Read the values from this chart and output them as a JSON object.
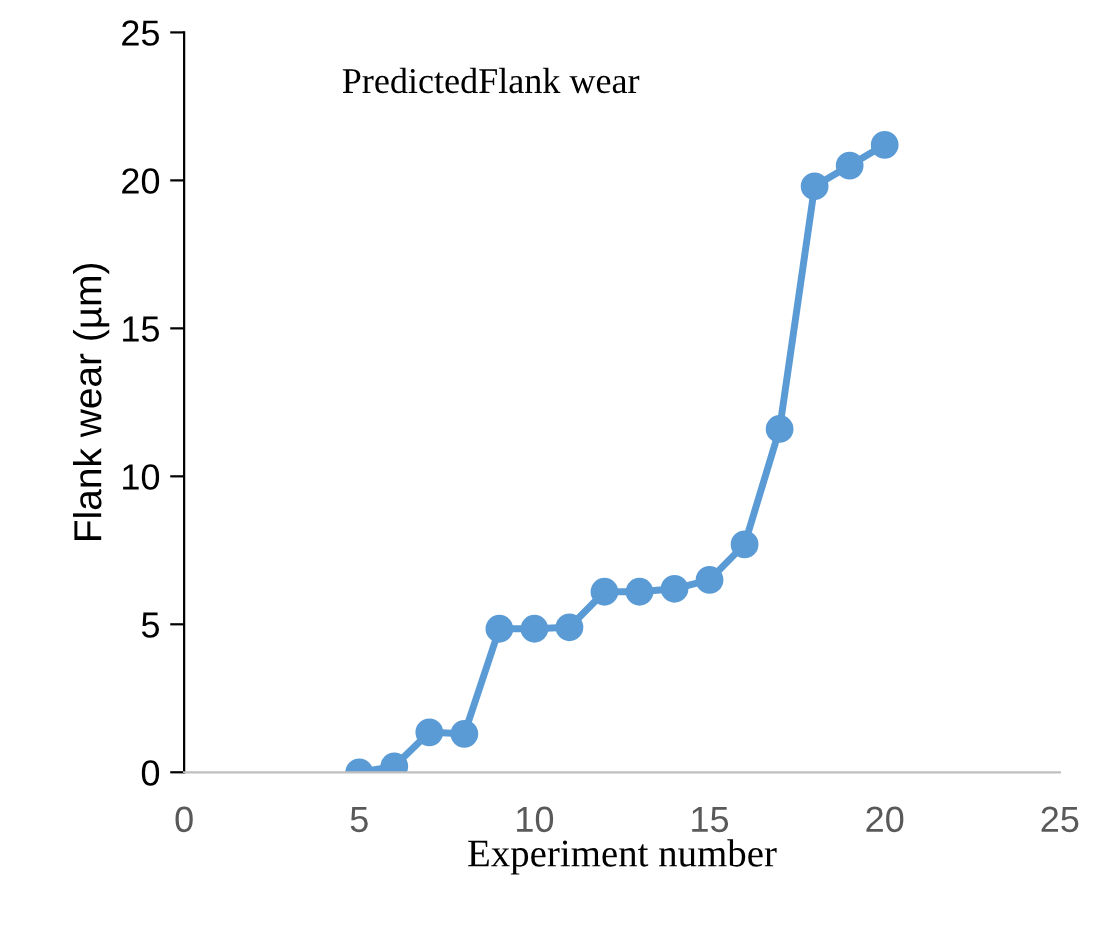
{
  "chart_data": {
    "type": "line",
    "xlabel": "Experiment number",
    "ylabel": "Flank wear (µm)",
    "annotations": [
      "PredictedFlank wear"
    ],
    "x": [
      5,
      6,
      7,
      8,
      9,
      10,
      11,
      12,
      13,
      14,
      15,
      16,
      17,
      18,
      19,
      20
    ],
    "series": [
      {
        "color": "#5b9bd5",
        "values": [
          0.0,
          0.2,
          1.35,
          1.3,
          4.85,
          4.85,
          4.9,
          6.1,
          6.1,
          6.2,
          6.5,
          7.7,
          11.6,
          19.8,
          20.5,
          21.2
        ]
      }
    ],
    "xlim": [
      0,
      25
    ],
    "xticks": [
      0,
      5,
      10,
      15,
      20,
      25
    ],
    "ylim": [
      0,
      25
    ],
    "yticks": [
      0,
      5,
      10,
      15,
      20,
      25
    ],
    "grid": false,
    "legend": false,
    "marker": "circle",
    "line_style": "solid"
  }
}
